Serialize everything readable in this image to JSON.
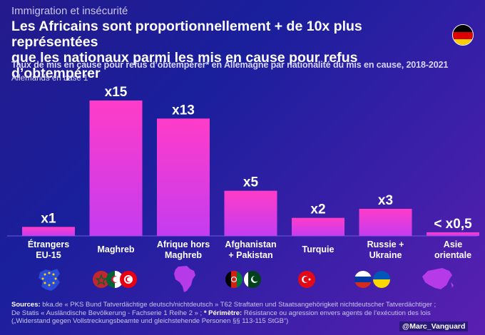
{
  "header": {
    "kicker": "Immigration et insécurité",
    "title_line1": "Les Africains sont proportionnellement + de 10x plus représentées",
    "title_line2": "que les nationaux parmi les mis en cause pour refus d’obtempérer",
    "subtitle": "Taux de mis en cause pour refus d’obtempérer* en Allemagne par nationalité du mis en cause, 2018-2021",
    "base_note": "Allemands en base 1"
  },
  "colors": {
    "bar_top": "#ff3cc8",
    "bar_bottom": "#c43cf0",
    "background_start": "#241a8c",
    "background_end": "#5a1fb0",
    "de_black": "#000000",
    "de_red": "#dd0000",
    "de_gold": "#ffce00"
  },
  "chart_data": {
    "type": "bar",
    "categories": [
      [
        "Étrangers",
        "EU-15"
      ],
      [
        "Maghreb"
      ],
      [
        "Afrique hors",
        "Maghreb"
      ],
      [
        "Afghanistan",
        "+ Pakistan"
      ],
      [
        "Turquie"
      ],
      [
        "Russie +",
        "Ukraine"
      ],
      [
        "Asie",
        "orientale"
      ]
    ],
    "values": [
      1,
      15,
      13,
      5,
      2,
      3,
      0.4
    ],
    "data_labels": [
      "x1",
      "x15",
      "x13",
      "x5",
      "x2",
      "x3",
      "< x0,5"
    ],
    "ylim": [
      0,
      15
    ],
    "grid": false,
    "legend": "none"
  },
  "icons": [
    "eu-flag-icon",
    "morocco-flag-icon",
    "algeria-flag-icon",
    "tunisia-flag-icon",
    "africa-map-icon",
    "afghanistan-flag-icon",
    "pakistan-flag-icon",
    "turkey-flag-icon",
    "russia-flag-icon",
    "ukraine-flag-icon",
    "east-asia-map-icon",
    "germany-flag-icon"
  ],
  "footer": {
    "sources_label": "Sources:",
    "sources_line1": " bka.de « PKS Bund Tatverdächtige deutsch/nichtdeutsch » T62 Straftaten und Staatsangehörigkeit nichtdeutscher Tatverdächtiger ;",
    "sources_line2a": "De Statis « Ausländische Bevölkerung - Fachserie 1 Reihe 2 » ; ",
    "perimetre_label": "* Périmètre:",
    "sources_line2b": " Résistance ou agression envers agents de l’exécution des lois",
    "sources_line3": "(„Widerstand gegen Vollstreckungsbeamte und gleichstehende Personen §§ 113-115 StGB“)",
    "signature": "@Marc_Vanguard"
  }
}
